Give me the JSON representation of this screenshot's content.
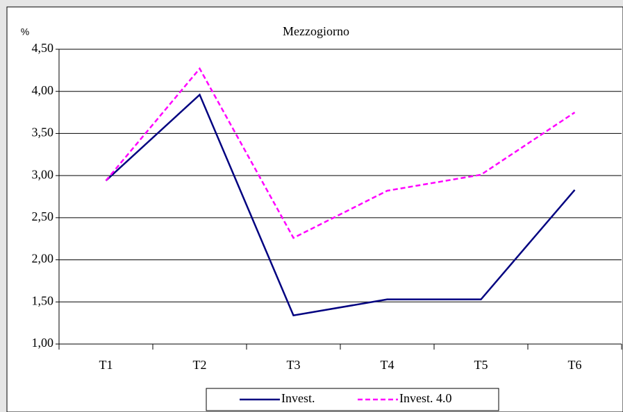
{
  "chart_data": {
    "type": "line",
    "title": "Mezzogiorno",
    "y_label": "%",
    "categories": [
      "T1",
      "T2",
      "T3",
      "T4",
      "T5",
      "T6"
    ],
    "series": [
      {
        "name": "Invest.",
        "color": "#000080",
        "dash": false,
        "values": [
          2.94,
          3.96,
          1.34,
          1.53,
          1.53,
          2.83
        ]
      },
      {
        "name": "Invest. 4.0",
        "color": "#ff00ff",
        "dash": true,
        "values": [
          2.94,
          4.27,
          2.26,
          2.82,
          3.01,
          3.75
        ]
      }
    ],
    "ylim": [
      1,
      4.5
    ],
    "yticks": [
      {
        "value": 1,
        "label": "1,00"
      },
      {
        "value": 1.5,
        "label": "1,50"
      },
      {
        "value": 2,
        "label": "2,00"
      },
      {
        "value": 2.5,
        "label": "2,50"
      },
      {
        "value": 3,
        "label": "3,00"
      },
      {
        "value": 3.5,
        "label": "3,50"
      },
      {
        "value": 4,
        "label": "4,00"
      },
      {
        "value": 4.5,
        "label": "4,50"
      }
    ],
    "grid": true,
    "legend": "bottom"
  }
}
